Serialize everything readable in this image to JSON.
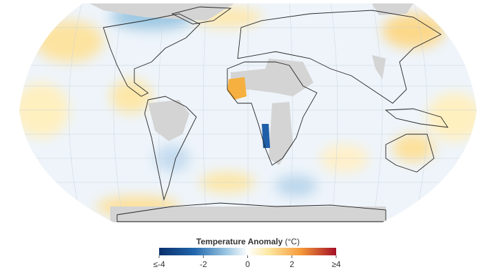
{
  "legend": {
    "title": "Temperature Anomaly",
    "unit": "(°C)",
    "range": [
      -4,
      4
    ],
    "ticks": [
      {
        "value": -4,
        "label": "≤-4"
      },
      -2,
      0,
      2,
      {
        "value": 4,
        "label": "≥4"
      }
    ]
  }
}
